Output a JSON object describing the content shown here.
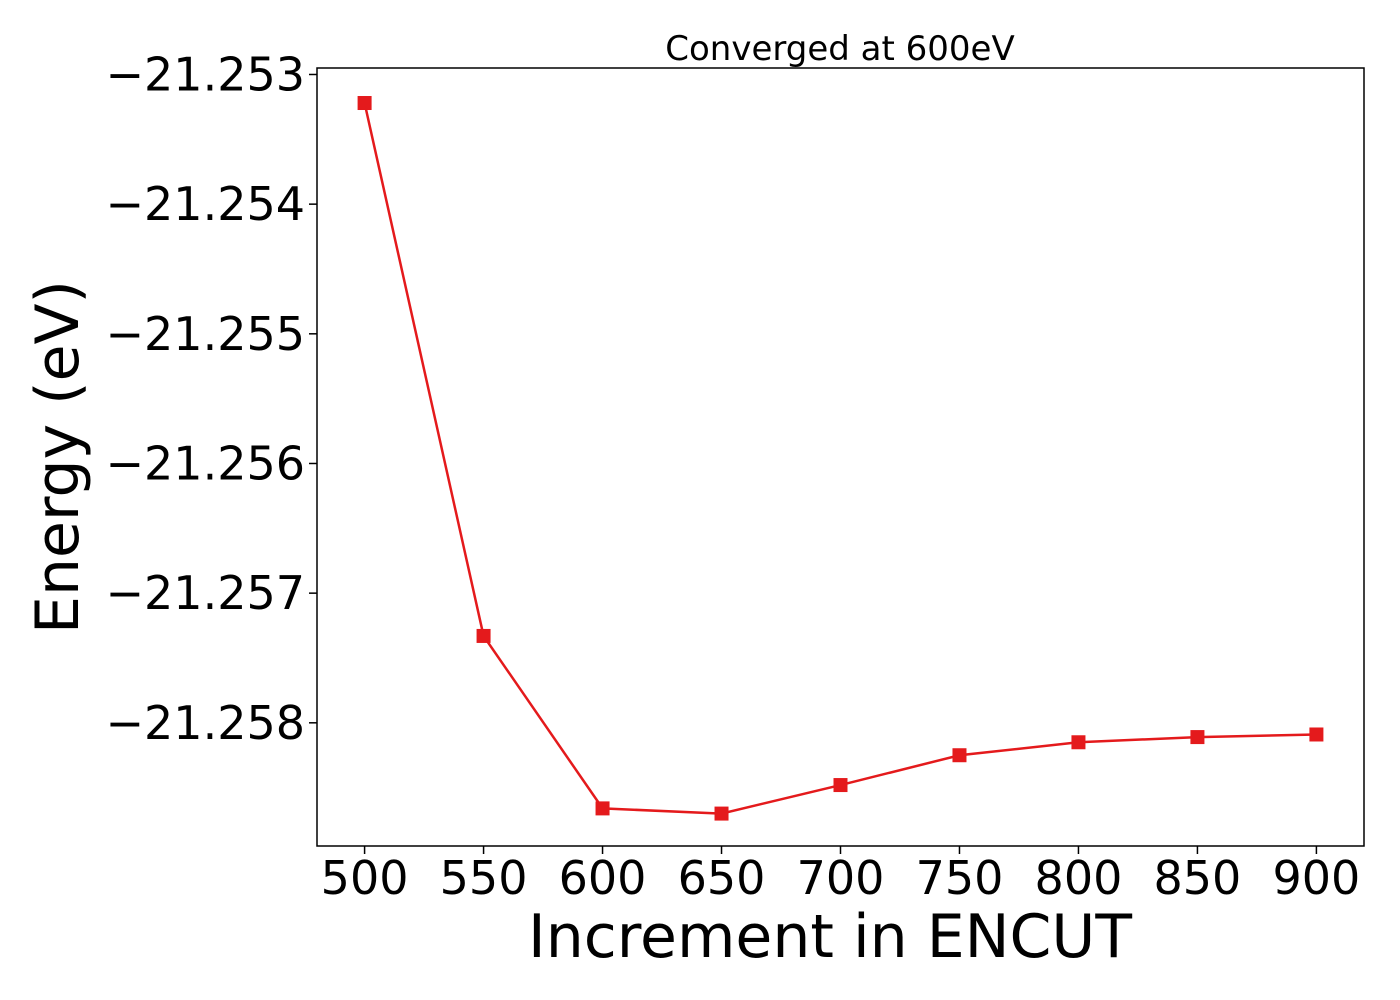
{
  "chart_data": {
    "type": "line",
    "title": "Converged at 600eV",
    "xlabel": "Increment in ENCUT",
    "ylabel": "Energy (eV)",
    "x": [
      500,
      550,
      600,
      650,
      700,
      750,
      800,
      850,
      900
    ],
    "x_ticks": [
      500,
      550,
      600,
      650,
      700,
      750,
      800,
      850,
      900
    ],
    "x_tick_labels": [
      "500",
      "550",
      "600",
      "650",
      "700",
      "750",
      "800",
      "850",
      "900"
    ],
    "y_ticks": [
      -21.253,
      -21.254,
      -21.255,
      -21.256,
      -21.257,
      -21.258
    ],
    "y_tick_labels": [
      "−21.253",
      "−21.254",
      "−21.255",
      "−21.256",
      "−21.257",
      "−21.258"
    ],
    "xlim": [
      480,
      920
    ],
    "ylim": [
      -21.25895,
      -21.25295
    ],
    "grid": false,
    "series": [
      {
        "color": "#e41a1c",
        "marker": "square",
        "values": [
          -21.25322,
          -21.25733,
          -21.25866,
          -21.2587,
          -21.25848,
          -21.25825,
          -21.25815,
          -21.25811,
          -21.25809
        ]
      }
    ]
  }
}
